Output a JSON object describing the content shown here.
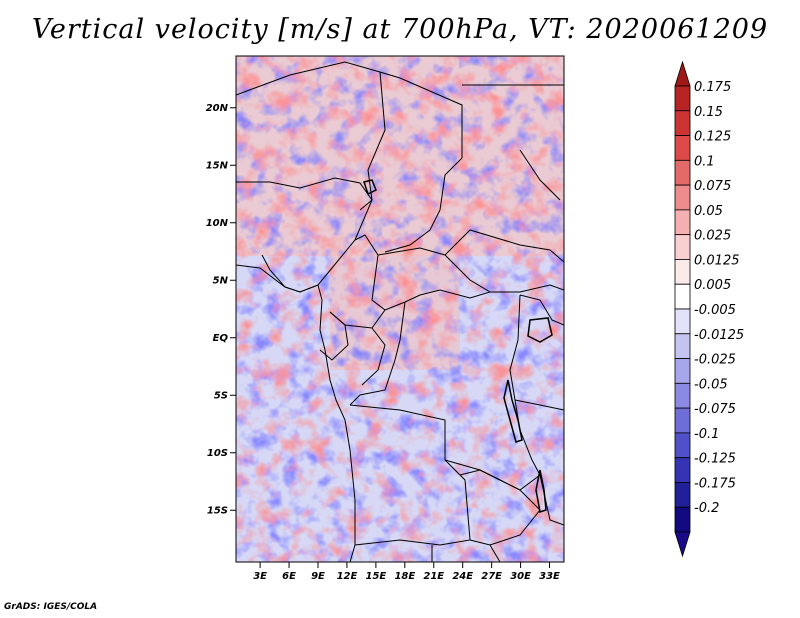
{
  "title": "Vertical velocity [m/s] at 700hPa, VT: 2020061209",
  "credit": "GrADS: IGES/COLA",
  "map": {
    "lat_labels": [
      "20N",
      "15N",
      "10N",
      "5N",
      "EQ",
      "5S",
      "10S",
      "15S"
    ],
    "lat_values": [
      20,
      15,
      10,
      5,
      0,
      -5,
      -10,
      -15
    ],
    "lon_labels": [
      "3E",
      "6E",
      "9E",
      "12E",
      "15E",
      "18E",
      "21E",
      "24E",
      "27E",
      "30E",
      "33E"
    ],
    "lon_values": [
      3,
      6,
      9,
      12,
      15,
      18,
      21,
      24,
      27,
      30,
      33
    ],
    "lon_range": [
      0.5,
      34.5
    ],
    "lat_range": [
      -19.5,
      24.5
    ]
  },
  "colorbar": {
    "labels": [
      "0.175",
      "0.15",
      "0.125",
      "0.1",
      "0.075",
      "0.05",
      "0.025",
      "0.0125",
      "0.005",
      "-0.005",
      "-0.0125",
      "-0.025",
      "-0.05",
      "-0.075",
      "-0.1",
      "-0.125",
      "-0.175",
      "-0.2"
    ],
    "colors": [
      "#a01818",
      "#b82424",
      "#cc3434",
      "#dc4a4a",
      "#e46a6a",
      "#ec8c8c",
      "#f4b0b0",
      "#f8d0d0",
      "#fceaea",
      "#ffffff",
      "#e2e2f8",
      "#c4c4f0",
      "#a6a6ea",
      "#8a8ae2",
      "#6e6ed6",
      "#5050c8",
      "#3434b4",
      "#202098",
      "#140a80",
      "#1a0a88"
    ]
  }
}
